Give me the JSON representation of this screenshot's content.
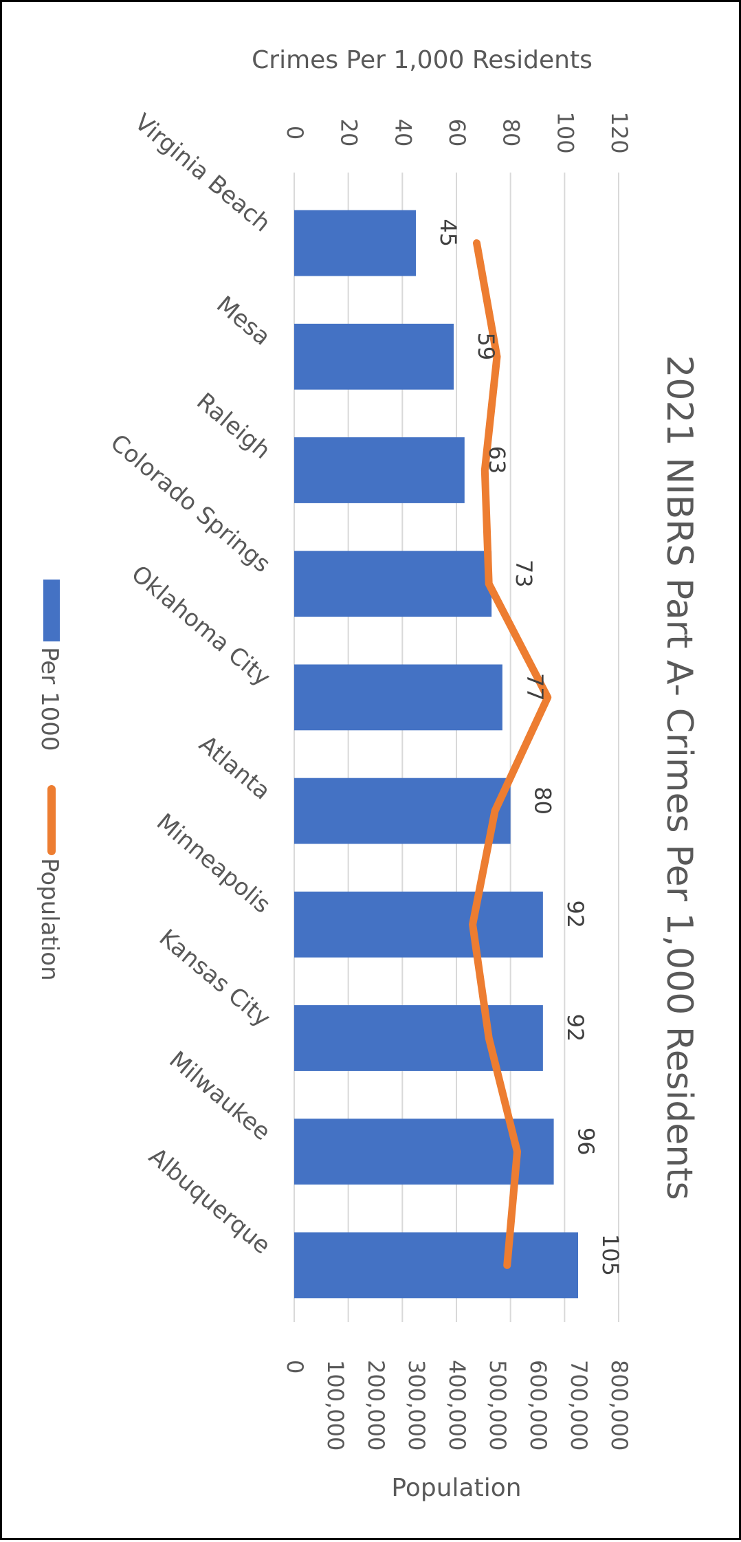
{
  "chart_data": {
    "type": "bar",
    "orientation": "horizontal-rotated",
    "title": "2021 NIBRS Part A- Crimes Per 1,000 Residents",
    "categories": [
      "Virginia Beach",
      "Mesa",
      "Raleigh",
      "Colorado Springs",
      "Oklahoma City",
      "Atlanta",
      "Minneapolis",
      "Kansas City",
      "Milwaukee",
      "Albuquerque"
    ],
    "series": [
      {
        "name": "Per 1000",
        "kind": "bar",
        "axis": "primary",
        "color": "#4472C4",
        "values": [
          45,
          59,
          63,
          73,
          77,
          80,
          92,
          92,
          96,
          105
        ],
        "data_labels": [
          "45",
          "59",
          "63",
          "73",
          "77",
          "80",
          "92",
          "92",
          "96",
          "105"
        ]
      },
      {
        "name": "Population",
        "kind": "line",
        "axis": "secondary",
        "color": "#ED7D31",
        "values": [
          450000,
          500000,
          470000,
          480000,
          625000,
          495000,
          440000,
          480000,
          550000,
          525000
        ]
      }
    ],
    "primary_axis": {
      "label": "Crimes Per 1,000 Residents",
      "range": [
        0,
        120
      ],
      "ticks": [
        0,
        20,
        40,
        60,
        80,
        100,
        120
      ],
      "tick_labels": [
        "0",
        "20",
        "40",
        "60",
        "80",
        "100",
        "120"
      ]
    },
    "secondary_axis": {
      "label": "Population",
      "range": [
        0,
        800000
      ],
      "ticks": [
        0,
        100000,
        200000,
        300000,
        400000,
        500000,
        600000,
        700000,
        800000
      ],
      "tick_labels": [
        "0",
        "100,000",
        "200,000",
        "300,000",
        "400,000",
        "500,000",
        "600,000",
        "700,000",
        "800,000"
      ]
    },
    "grid": true,
    "legend": {
      "position": "left",
      "entries": [
        "Per 1000",
        "Population"
      ]
    }
  }
}
